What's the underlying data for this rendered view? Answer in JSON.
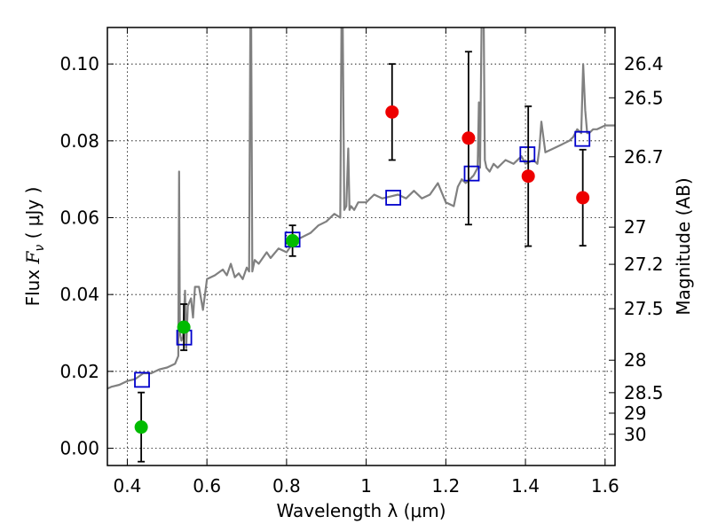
{
  "chart_data": {
    "type": "scatter",
    "xlabel": "Wavelength  λ (μm)",
    "ylabel": "Flux  F_ν  ( μJy )",
    "ylabel_parts": {
      "prefix": "Flux  ",
      "symbol": "F",
      "subscript": "ν",
      "suffix": "  ( μJy )"
    },
    "y2label": "Magnitude (AB)",
    "xlim": [
      0.35,
      1.625
    ],
    "ylim": [
      -0.0045,
      0.1095
    ],
    "grid": true,
    "x_ticks": [
      0.4,
      0.6,
      0.8,
      1.0,
      1.2,
      1.4,
      1.6
    ],
    "x_tick_labels": [
      "0.4",
      "0.6",
      "0.8",
      "1",
      "1.2",
      "1.4",
      "1.6"
    ],
    "y_ticks": [
      0.0,
      0.02,
      0.04,
      0.06,
      0.08,
      0.1
    ],
    "y_tick_labels": [
      "0.00",
      "0.02",
      "0.04",
      "0.06",
      "0.08",
      "0.10"
    ],
    "mag_ticks": [
      26.4,
      26.5,
      26.7,
      27,
      27.2,
      27.5,
      28,
      28.5,
      29,
      30
    ],
    "mag_tick_labels": [
      "26.4",
      "26.5",
      "26.7",
      "27",
      "27.2",
      "27.5",
      "28",
      "28.5",
      "29",
      "30"
    ],
    "colors": {
      "spectrum": "#808080",
      "green_points": "#00bb00",
      "red_points": "#ee0000",
      "model_squares": "#0000cc",
      "error_bars": "#000000"
    },
    "spectrum": {
      "name": "",
      "x": [
        0.35,
        0.36,
        0.38,
        0.4,
        0.42,
        0.44,
        0.46,
        0.48,
        0.5,
        0.52,
        0.528,
        0.53,
        0.532,
        0.536,
        0.54,
        0.545,
        0.548,
        0.552,
        0.56,
        0.565,
        0.57,
        0.58,
        0.59,
        0.6,
        0.62,
        0.64,
        0.65,
        0.66,
        0.67,
        0.68,
        0.69,
        0.7,
        0.706,
        0.709,
        0.711,
        0.714,
        0.72,
        0.73,
        0.75,
        0.76,
        0.78,
        0.8,
        0.82,
        0.84,
        0.86,
        0.88,
        0.9,
        0.92,
        0.935,
        0.938,
        0.941,
        0.945,
        0.95,
        0.955,
        0.958,
        0.962,
        0.97,
        0.98,
        1.0,
        1.02,
        1.04,
        1.06,
        1.08,
        1.1,
        1.12,
        1.14,
        1.16,
        1.18,
        1.2,
        1.22,
        1.23,
        1.24,
        1.25,
        1.26,
        1.27,
        1.28,
        1.283,
        1.286,
        1.29,
        1.295,
        1.298,
        1.302,
        1.31,
        1.32,
        1.33,
        1.35,
        1.37,
        1.39,
        1.4,
        1.42,
        1.43,
        1.435,
        1.44,
        1.45,
        1.47,
        1.49,
        1.51,
        1.52,
        1.53,
        1.54,
        1.545,
        1.55,
        1.555,
        1.56,
        1.57,
        1.58,
        1.6,
        1.625
      ],
      "y": [
        0.0155,
        0.016,
        0.0165,
        0.0175,
        0.018,
        0.0195,
        0.0195,
        0.0205,
        0.021,
        0.022,
        0.024,
        0.072,
        0.03,
        0.028,
        0.029,
        0.041,
        0.026,
        0.037,
        0.039,
        0.034,
        0.042,
        0.042,
        0.036,
        0.044,
        0.045,
        0.0465,
        0.045,
        0.048,
        0.0445,
        0.0455,
        0.044,
        0.047,
        0.046,
        0.112,
        0.112,
        0.046,
        0.049,
        0.048,
        0.051,
        0.0495,
        0.052,
        0.051,
        0.054,
        0.055,
        0.056,
        0.058,
        0.059,
        0.061,
        0.06,
        0.112,
        0.112,
        0.062,
        0.063,
        0.078,
        0.062,
        0.063,
        0.062,
        0.064,
        0.064,
        0.066,
        0.065,
        0.0655,
        0.066,
        0.065,
        0.067,
        0.065,
        0.066,
        0.069,
        0.064,
        0.063,
        0.068,
        0.07,
        0.069,
        0.07,
        0.071,
        0.073,
        0.09,
        0.073,
        0.112,
        0.112,
        0.075,
        0.073,
        0.072,
        0.074,
        0.073,
        0.075,
        0.074,
        0.076,
        0.074,
        0.075,
        0.074,
        0.078,
        0.085,
        0.077,
        0.078,
        0.079,
        0.08,
        0.081,
        0.083,
        0.082,
        0.1,
        0.088,
        0.082,
        0.082,
        0.083,
        0.083,
        0.084,
        0.084
      ]
    },
    "detections_green": [
      {
        "x": 0.435,
        "y": 0.0055,
        "err": 0.009
      },
      {
        "x": 0.542,
        "y": 0.0315,
        "err": 0.006
      },
      {
        "x": 0.815,
        "y": 0.054,
        "err": 0.004
      }
    ],
    "detections_red": [
      {
        "x": 1.065,
        "y": 0.0875,
        "err": 0.0125
      },
      {
        "x": 1.257,
        "y": 0.0807,
        "err": 0.0225
      },
      {
        "x": 1.407,
        "y": 0.0708,
        "err": 0.0182
      },
      {
        "x": 1.544,
        "y": 0.0652,
        "err": 0.0125
      }
    ],
    "model_squares": [
      {
        "x": 0.437,
        "y": 0.0178
      },
      {
        "x": 0.543,
        "y": 0.0288
      },
      {
        "x": 0.815,
        "y": 0.0543
      },
      {
        "x": 1.068,
        "y": 0.0652
      },
      {
        "x": 1.265,
        "y": 0.0715
      },
      {
        "x": 1.405,
        "y": 0.0765
      },
      {
        "x": 1.543,
        "y": 0.0805
      }
    ]
  }
}
